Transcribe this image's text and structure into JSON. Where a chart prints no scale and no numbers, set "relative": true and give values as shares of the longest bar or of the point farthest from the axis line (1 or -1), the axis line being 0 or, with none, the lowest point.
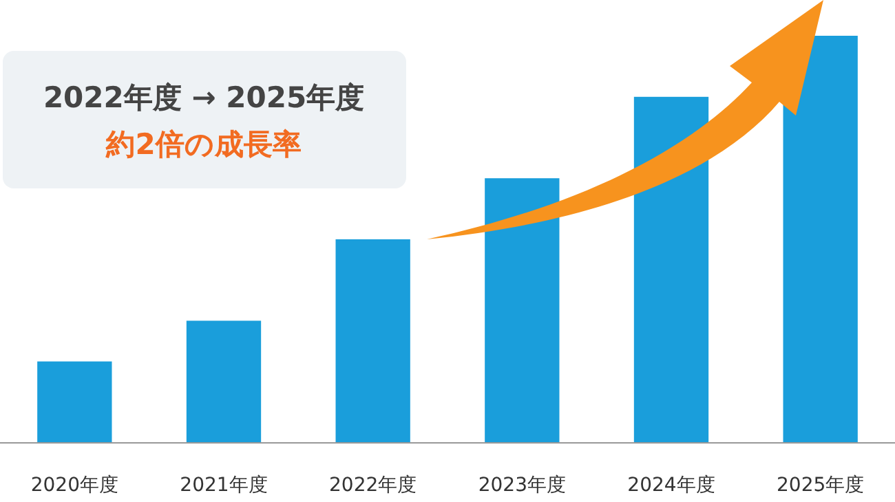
{
  "chart_data": {
    "type": "bar",
    "relative": true,
    "categories": [
      "2020年度",
      "2021年度",
      "2022年度",
      "2023年度",
      "2024年度",
      "2025年度"
    ],
    "values": [
      0.2,
      0.3,
      0.5,
      0.65,
      0.85,
      1
    ],
    "color": "#1a9edb",
    "annotations": [
      "2022年度 → 2025年度",
      "約2倍の成長率"
    ]
  }
}
